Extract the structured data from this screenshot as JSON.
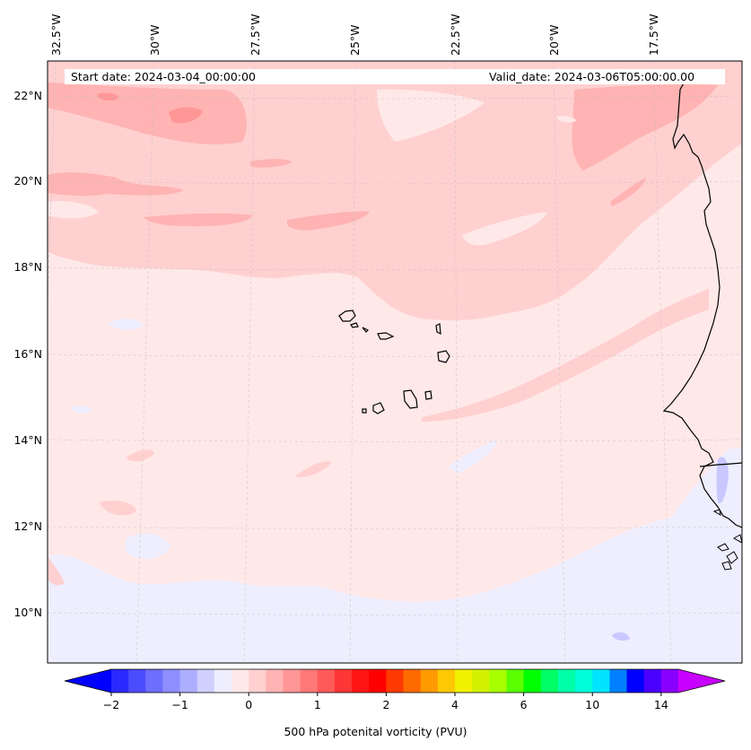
{
  "map": {
    "start_label": "Start date: 2024-03-04_00:00:00",
    "valid_label": "Valid_date: 2024-03-06T05:00:00.00",
    "lon_labels": [
      "32.5°W",
      "30°W",
      "27.5°W",
      "25°W",
      "22.5°W",
      "20°W",
      "17.5°W"
    ],
    "lat_labels": [
      "22°N",
      "20°N",
      "18°N",
      "16°N",
      "14°N",
      "12°N",
      "10°N"
    ],
    "field_colors": {
      "background": "#ffe8e8",
      "light_pink": "#ffd0d0",
      "pink": "#ffb3b3",
      "salmon": "#ff9696",
      "pale_blue": "#eeeeff",
      "blue": "#c8c8ff",
      "coast": "#000000"
    }
  },
  "colorbar": {
    "label": "500 hPa potenital vorticity (PVU)",
    "tick_labels": [
      "−2",
      "−1",
      "0",
      "1",
      "2",
      "4",
      "6",
      "10",
      "14"
    ],
    "colors": [
      "#0000ff",
      "#2a2aff",
      "#4c4cff",
      "#6e6eff",
      "#8e8eff",
      "#aeaeff",
      "#d0d0ff",
      "#eeeeff",
      "#ffe8e8",
      "#ffd0d0",
      "#ffb3b3",
      "#ff9696",
      "#ff7878",
      "#ff5a5a",
      "#ff3636",
      "#ff1414",
      "#ff0000",
      "#ff3a00",
      "#ff6a00",
      "#ff9a00",
      "#ffc800",
      "#f0f000",
      "#d2f000",
      "#a8ff00",
      "#5aff00",
      "#00ff00",
      "#00ff66",
      "#00ffa8",
      "#00ffd8",
      "#00e4ff",
      "#0080ff",
      "#0000ff",
      "#4a00ff",
      "#8a00ff",
      "#c800ff"
    ]
  }
}
